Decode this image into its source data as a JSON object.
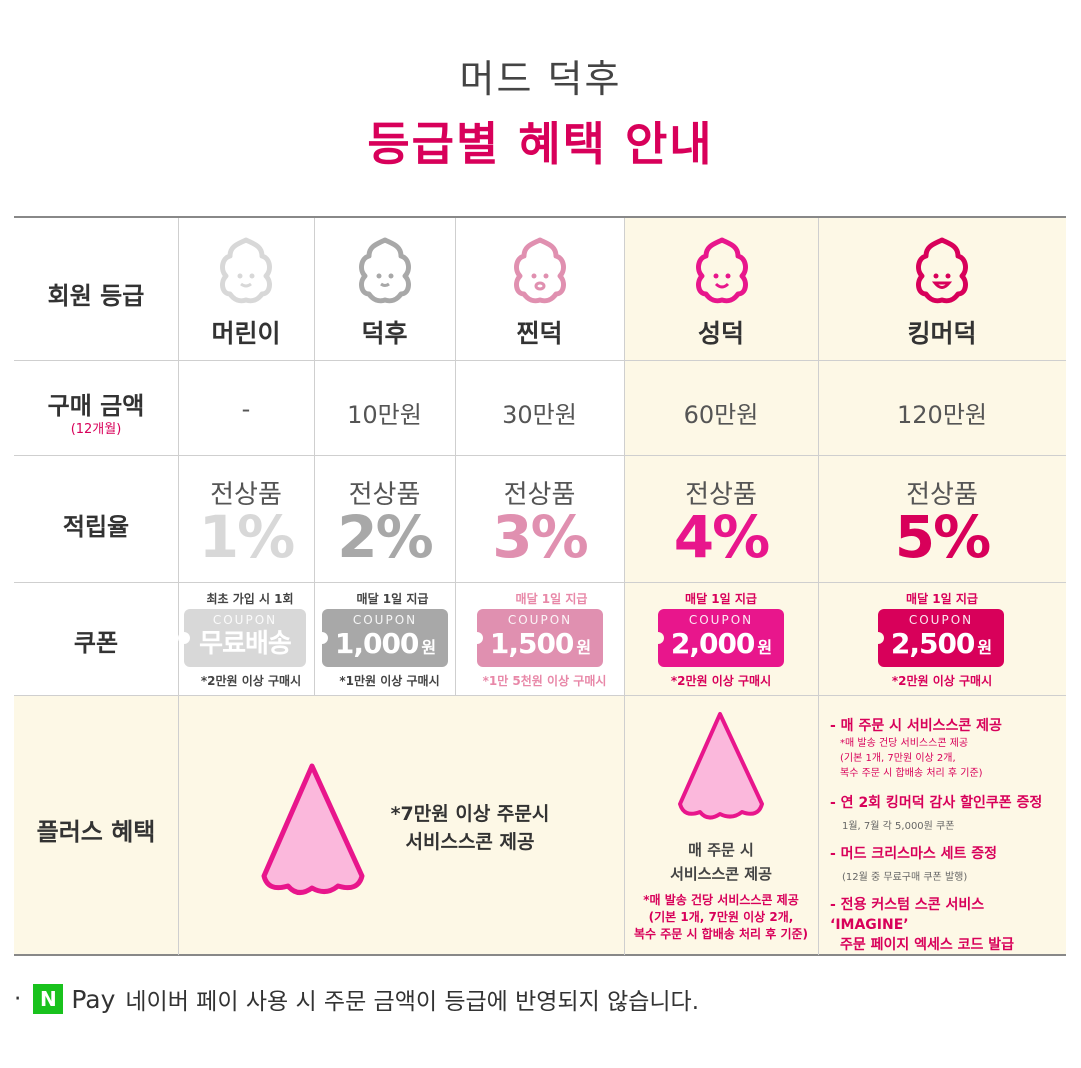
{
  "header": {
    "subtitle": "머드 덕후",
    "title": "등급별 혜택 안내"
  },
  "rows": {
    "grade": "회원 등급",
    "purchase": "구매 금액",
    "purchase_sub": "(12개월)",
    "reward": "적립율",
    "coupon": "쿠폰",
    "plus": "플러스 혜택"
  },
  "grades": [
    {
      "name": "머린이",
      "amount": "-",
      "reward_label": "전상품",
      "reward_pct": "1%",
      "coupon_top": "최초 가입 시 1회",
      "coupon_word": "COUPON",
      "coupon_value": "무료배송",
      "coupon_unit": "",
      "coupon_bottom": "*2만원 이상 구매시"
    },
    {
      "name": "덕후",
      "amount": "10만원",
      "reward_label": "전상품",
      "reward_pct": "2%",
      "coupon_top": "매달 1일 지급",
      "coupon_word": "COUPON",
      "coupon_value": "1,000",
      "coupon_unit": "원",
      "coupon_bottom": "*1만원 이상 구매시"
    },
    {
      "name": "찐덕",
      "amount": "30만원",
      "reward_label": "전상품",
      "reward_pct": "3%",
      "coupon_top": "매달 1일 지급",
      "coupon_word": "COUPON",
      "coupon_value": "1,500",
      "coupon_unit": "원",
      "coupon_bottom": "*1만 5천원 이상 구매시"
    },
    {
      "name": "성덕",
      "amount": "60만원",
      "reward_label": "전상품",
      "reward_pct": "4%",
      "coupon_top": "매달 1일 지급",
      "coupon_word": "COUPON",
      "coupon_value": "2,000",
      "coupon_unit": "원",
      "coupon_bottom": "*2만원 이상 구매시"
    },
    {
      "name": "킹머덕",
      "amount": "120만원",
      "reward_label": "전상품",
      "reward_pct": "5%",
      "coupon_top": "매달 1일 지급",
      "coupon_word": "COUPON",
      "coupon_value": "2,500",
      "coupon_unit": "원",
      "coupon_bottom": "*2만원 이상 구매시"
    }
  ],
  "plus": {
    "low_line1": "*7만원 이상 주문시",
    "low_line2": "서비스스콘 제공",
    "mid_line1": "매 주문 시",
    "mid_line2": "서비스스콘 제공",
    "mid_note1": "*매 발송 건당 서비스스콘 제공",
    "mid_note2": "(기본 1개, 7만원 이상 2개,",
    "mid_note3": "복수 주문 시 합배송 처리 후 기준)",
    "king": [
      {
        "head": "- 매 주문 시 서비스스콘 제공",
        "sub1": "*매 발송 건당 서비스스콘 제공",
        "sub2": "(기본 1개, 7만원 이상 2개,",
        "sub3": "복수 주문 시 합배송 처리 후 기준)"
      },
      {
        "head": "- 연 2회 킹머덕 감사 할인쿠폰 증정",
        "note": "1월, 7월 각 5,000원 쿠폰"
      },
      {
        "head": "- 머드 크리스마스 세트 증정",
        "note": "(12월 중 무료구매 쿠폰 발행)"
      },
      {
        "head": "- 전용 커스텀 스콘 서비스 ‘IMAGINE’",
        "head2": "주문 페이지 엑세스 코드 발급"
      }
    ]
  },
  "footer": {
    "bullet": "·",
    "n": "N",
    "pay": "Pay",
    "text": "네이버 페이 사용 시 주문 금액이 등급에 반영되지 않습니다."
  },
  "colors": {
    "accent": "#d8005a",
    "grey1": "#d8d8d8",
    "grey2": "#a8a8a8",
    "pink1": "#e090b0",
    "pink2": "#e8168c",
    "pink3": "#d8005a",
    "cream": "#fdf8e6",
    "naver": "#19c21d"
  }
}
